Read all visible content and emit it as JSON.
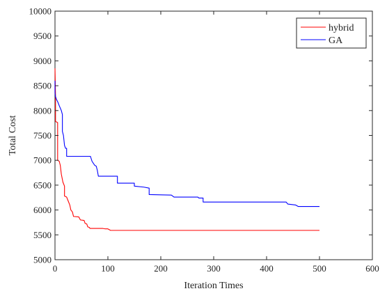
{
  "chart_data": {
    "type": "line",
    "xlabel": "Iteration Times",
    "ylabel": "Total Cost",
    "xlim": [
      0,
      600
    ],
    "ylim": [
      5000,
      10000
    ],
    "xticks": [
      0,
      100,
      200,
      300,
      400,
      500,
      600
    ],
    "yticks": [
      5000,
      5500,
      6000,
      6500,
      7000,
      7500,
      8000,
      8500,
      9000,
      9500,
      10000
    ],
    "grid": false,
    "legend_position": "top-right",
    "series": [
      {
        "name": "hybrid",
        "color": "#ff0000",
        "points": [
          [
            0,
            8850
          ],
          [
            1,
            8300
          ],
          [
            1,
            7780
          ],
          [
            5,
            7760
          ],
          [
            5,
            7000
          ],
          [
            8,
            6980
          ],
          [
            10,
            6900
          ],
          [
            12,
            6720
          ],
          [
            15,
            6560
          ],
          [
            18,
            6480
          ],
          [
            18,
            6280
          ],
          [
            22,
            6260
          ],
          [
            25,
            6180
          ],
          [
            28,
            6100
          ],
          [
            30,
            6000
          ],
          [
            33,
            5960
          ],
          [
            35,
            5870
          ],
          [
            45,
            5860
          ],
          [
            48,
            5800
          ],
          [
            55,
            5790
          ],
          [
            57,
            5730
          ],
          [
            60,
            5720
          ],
          [
            62,
            5660
          ],
          [
            65,
            5650
          ],
          [
            66,
            5630
          ],
          [
            90,
            5630
          ],
          [
            95,
            5620
          ],
          [
            100,
            5620
          ],
          [
            105,
            5590
          ],
          [
            500,
            5590
          ]
        ]
      },
      {
        "name": "GA",
        "color": "#0000ff",
        "points": [
          [
            0,
            8600
          ],
          [
            0,
            8350
          ],
          [
            1,
            8280
          ],
          [
            3,
            8220
          ],
          [
            5,
            8180
          ],
          [
            8,
            8100
          ],
          [
            12,
            8000
          ],
          [
            14,
            7920
          ],
          [
            14,
            7580
          ],
          [
            16,
            7500
          ],
          [
            18,
            7300
          ],
          [
            20,
            7240
          ],
          [
            22,
            7240
          ],
          [
            22,
            7080
          ],
          [
            67,
            7080
          ],
          [
            70,
            6980
          ],
          [
            75,
            6900
          ],
          [
            78,
            6880
          ],
          [
            80,
            6800
          ],
          [
            82,
            6680
          ],
          [
            118,
            6680
          ],
          [
            118,
            6540
          ],
          [
            150,
            6540
          ],
          [
            150,
            6480
          ],
          [
            168,
            6460
          ],
          [
            178,
            6440
          ],
          [
            178,
            6310
          ],
          [
            220,
            6300
          ],
          [
            225,
            6260
          ],
          [
            270,
            6260
          ],
          [
            272,
            6240
          ],
          [
            280,
            6240
          ],
          [
            280,
            6160
          ],
          [
            437,
            6160
          ],
          [
            440,
            6120
          ],
          [
            455,
            6100
          ],
          [
            460,
            6070
          ],
          [
            500,
            6070
          ]
        ]
      }
    ]
  }
}
